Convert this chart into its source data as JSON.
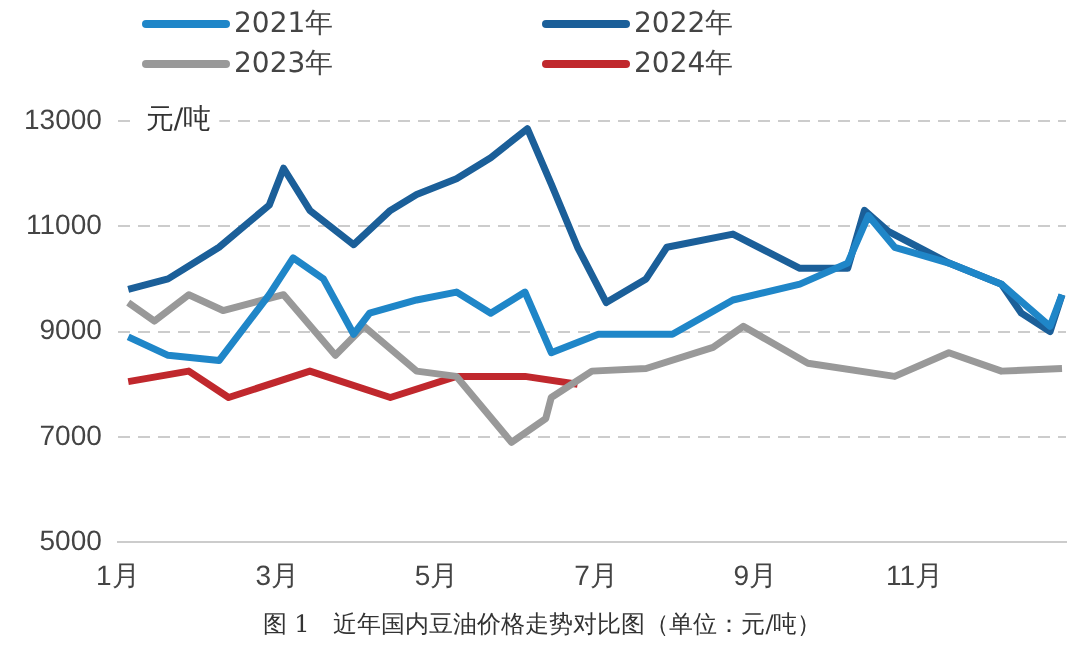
{
  "chart_data": {
    "type": "line",
    "ylabel": "元/吨",
    "annotations": [
      "图 1　近年国内豆油价格走势对比图（单位：元/吨）"
    ],
    "xlim": [
      1,
      12.9
    ],
    "xticks": [
      {
        "value": 1,
        "label": "1月"
      },
      {
        "value": 3,
        "label": "3月"
      },
      {
        "value": 5,
        "label": "5月"
      },
      {
        "value": 7,
        "label": "7月"
      },
      {
        "value": 9,
        "label": "9月"
      },
      {
        "value": 11,
        "label": "11月"
      }
    ],
    "ylim": [
      5000,
      13000
    ],
    "yticks": [
      5000,
      7000,
      9000,
      11000,
      13000
    ],
    "grid": "y",
    "legend": "top",
    "marker": "none",
    "line_style": "solid",
    "series": [
      {
        "name": "2021年",
        "color": "#1f86c8",
        "x": [
          1.13,
          1.63,
          2.27,
          2.9,
          3.2,
          3.58,
          3.96,
          4.16,
          4.75,
          5.25,
          5.68,
          6.11,
          6.44,
          7.03,
          7.96,
          8.72,
          9.56,
          10.16,
          10.42,
          10.75,
          11.43,
          12.09,
          12.7,
          12.85
        ],
        "values": [
          8900,
          8550,
          8450,
          9700,
          10400,
          10000,
          8950,
          9350,
          9600,
          9750,
          9350,
          9750,
          8600,
          8950,
          8950,
          9600,
          9900,
          10300,
          11200,
          10600,
          10300,
          9900,
          9100,
          9700
        ]
      },
      {
        "name": "2022年",
        "color": "#1b5f99",
        "x": [
          1.13,
          1.63,
          2.27,
          2.9,
          3.08,
          3.41,
          3.96,
          4.42,
          4.75,
          5.25,
          5.68,
          6.14,
          6.44,
          6.77,
          7.13,
          7.63,
          7.89,
          8.72,
          9.56,
          10.16,
          10.37,
          10.67,
          11.43,
          12.09,
          12.34,
          12.7,
          12.85
        ],
        "values": [
          9800,
          10000,
          10600,
          11400,
          12100,
          11300,
          10650,
          11300,
          11600,
          11900,
          12300,
          12850,
          11800,
          10600,
          9550,
          10000,
          10600,
          10850,
          10200,
          10200,
          11300,
          10900,
          10300,
          9900,
          9350,
          9000,
          9700
        ]
      },
      {
        "name": "2023年",
        "color": "#999999",
        "x": [
          1.13,
          1.46,
          1.89,
          2.32,
          3.08,
          3.73,
          4.09,
          4.75,
          5.25,
          5.94,
          6.37,
          6.44,
          6.95,
          7.63,
          8.47,
          8.85,
          9.66,
          10.75,
          11.43,
          12.09,
          12.85
        ],
        "values": [
          9550,
          9200,
          9700,
          9400,
          9700,
          8550,
          9100,
          8250,
          8150,
          6900,
          7350,
          7750,
          8250,
          8300,
          8700,
          9100,
          8400,
          8150,
          8600,
          8250,
          8300
        ]
      },
      {
        "name": "2024年",
        "color": "#c0282d",
        "x": [
          1.13,
          1.89,
          2.39,
          3.41,
          4.42,
          5.25,
          6.11,
          6.77
        ],
        "values": [
          8050,
          8250,
          7750,
          8250,
          7750,
          8150,
          8150,
          8000
        ]
      }
    ]
  }
}
